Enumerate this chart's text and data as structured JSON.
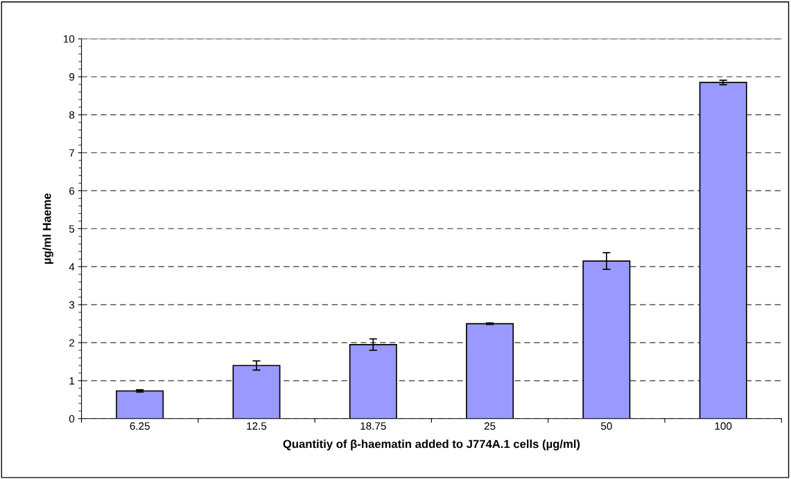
{
  "chart_data": {
    "type": "bar",
    "xlabel": "Quantitiy of β-haematin added to J774A.1 cells (µg/ml)",
    "ylabel": "µg/ml Haeme",
    "categories": [
      "6.25",
      "12.5",
      "18.75",
      "25",
      "50",
      "100"
    ],
    "values": [
      0.73,
      1.4,
      1.95,
      2.5,
      4.15,
      8.85
    ],
    "errors": [
      0.03,
      0.12,
      0.15,
      0.02,
      0.22,
      0.06
    ],
    "color": "#9999ff",
    "ylim": [
      0,
      10
    ],
    "yticks": [
      0,
      1,
      2,
      3,
      4,
      5,
      6,
      7,
      8,
      9,
      10
    ],
    "grid": "y",
    "line_style": "dashed"
  }
}
